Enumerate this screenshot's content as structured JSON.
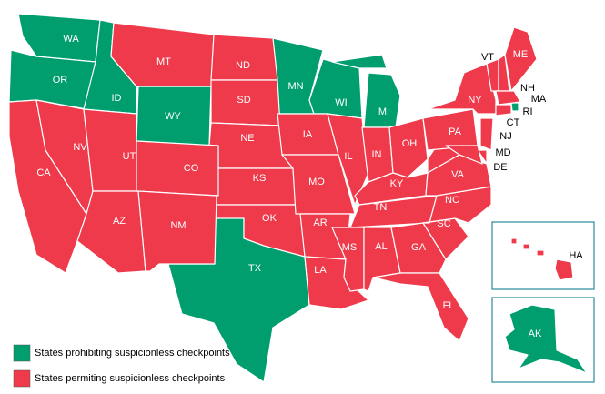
{
  "legend": [
    {
      "label": "States prohibiting suspicionless checkpoints",
      "color": "#009e6e",
      "states": [
        "WA",
        "OR",
        "ID",
        "WY",
        "MN",
        "WI",
        "MI",
        "TX",
        "RI",
        "AK"
      ]
    },
    {
      "label": "States permiting suspicionless checkpoints",
      "color": "#ee3a4a",
      "states": [
        "MT",
        "ND",
        "SD",
        "NE",
        "KS",
        "OK",
        "CA",
        "NV",
        "UT",
        "AZ",
        "CO",
        "NM",
        "IA",
        "MO",
        "AR",
        "LA",
        "IL",
        "IN",
        "OH",
        "KY",
        "TN",
        "MS",
        "AL",
        "GA",
        "FL",
        "SC",
        "NC",
        "VA",
        "PA",
        "NY",
        "VT",
        "NH",
        "ME",
        "MA",
        "CT",
        "NJ",
        "DE",
        "MD",
        "HA"
      ]
    }
  ]
}
